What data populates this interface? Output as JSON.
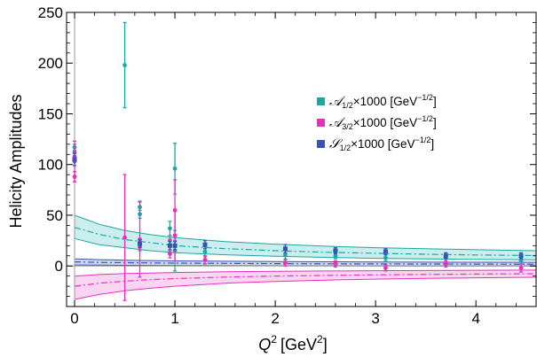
{
  "chart_data": {
    "type": "scatter",
    "xlabel": "Q",
    "xlabel_sup": "2",
    "xlabel_unit": "[GeV",
    "xlabel_unit_sup": "2",
    "xlabel_close": "]",
    "ylabel": "Helicity Amplitudes",
    "xlim": [
      -0.08,
      4.6
    ],
    "ylim": [
      -40,
      250
    ],
    "x_ticks": [
      0,
      1,
      2,
      3,
      4
    ],
    "x_tick_labels": [
      "0",
      "1",
      "2",
      "3",
      "4"
    ],
    "y_ticks": [
      0,
      50,
      100,
      150,
      200,
      250
    ],
    "y_tick_labels": [
      "0",
      "50",
      "100",
      "150",
      "200",
      "250"
    ],
    "legend_position": "top-right",
    "grid": false,
    "series": [
      {
        "key": "A12",
        "name": "𝒜1/2×1000 [GeV−1/2]",
        "legend_symbol": "𝒜",
        "legend_sub": "1/2",
        "legend_mid": "×1000 [GeV",
        "legend_sup": "−1/2",
        "legend_end": "]",
        "color": "#1aa8a4",
        "band_fill": "#9fdede",
        "points": [
          {
            "x": 0.0,
            "y": 117,
            "err": 3
          },
          {
            "x": 0.0,
            "y": 112,
            "err": 5
          },
          {
            "x": 0.5,
            "y": 198,
            "err": 42
          },
          {
            "x": 0.65,
            "y": 58,
            "err": 6
          },
          {
            "x": 0.65,
            "y": 51,
            "err": 4
          },
          {
            "x": 0.95,
            "y": 37,
            "err": 7
          },
          {
            "x": 0.95,
            "y": 25,
            "err": 5
          },
          {
            "x": 1.0,
            "y": 96,
            "err": 25
          },
          {
            "x": 1.0,
            "y": 15,
            "err": 20
          },
          {
            "x": 1.3,
            "y": 14,
            "err": 5
          },
          {
            "x": 2.1,
            "y": 11,
            "err": 4
          },
          {
            "x": 2.6,
            "y": 10,
            "err": 3
          },
          {
            "x": 3.1,
            "y": 8,
            "err": 3
          },
          {
            "x": 3.7,
            "y": 8,
            "err": 3
          },
          {
            "x": 4.45,
            "y": 5,
            "err": 3
          }
        ],
        "band": {
          "x": [
            0.0,
            0.25,
            0.5,
            0.75,
            1.0,
            1.5,
            2.0,
            2.5,
            3.0,
            3.5,
            4.0,
            4.6
          ],
          "center": [
            38,
            31,
            26,
            23,
            20,
            17,
            15,
            13.5,
            12.5,
            11.5,
            10.8,
            10.2
          ],
          "lower": [
            27,
            21,
            18,
            15,
            13,
            11,
            9.5,
            8.5,
            7.5,
            7,
            6.5,
            6
          ],
          "upper": [
            50,
            41,
            35,
            31,
            28,
            24,
            21.5,
            19.5,
            18,
            17,
            16,
            15
          ]
        }
      },
      {
        "key": "A32",
        "name": "𝒜3/2×1000 [GeV−1/2]",
        "legend_symbol": "𝒜",
        "legend_sub": "3/2",
        "legend_mid": "×1000 [GeV",
        "legend_sup": "−1/2",
        "legend_end": "]",
        "color": "#e72fbf",
        "band_fill": "#f6b2e6",
        "points": [
          {
            "x": 0.0,
            "y": 108,
            "err": 5
          },
          {
            "x": 0.0,
            "y": 103,
            "err": 20
          },
          {
            "x": 0.0,
            "y": 88,
            "err": 5
          },
          {
            "x": 0.5,
            "y": 28,
            "err": 62
          },
          {
            "x": 0.65,
            "y": 26,
            "err": 37
          },
          {
            "x": 0.65,
            "y": 19,
            "err": 4
          },
          {
            "x": 0.95,
            "y": 20,
            "err": 6
          },
          {
            "x": 0.95,
            "y": 12,
            "err": 4
          },
          {
            "x": 1.0,
            "y": 55,
            "err": 30
          },
          {
            "x": 1.0,
            "y": 30,
            "err": 25
          },
          {
            "x": 1.3,
            "y": 6,
            "err": 4
          },
          {
            "x": 2.1,
            "y": 3,
            "err": 3
          },
          {
            "x": 2.6,
            "y": 2,
            "err": 3
          },
          {
            "x": 3.1,
            "y": -2,
            "err": 3
          },
          {
            "x": 3.7,
            "y": 2,
            "err": 3
          },
          {
            "x": 4.45,
            "y": -2,
            "err": 4
          }
        ],
        "band": {
          "x": [
            0.0,
            0.25,
            0.5,
            0.75,
            1.0,
            1.5,
            2.0,
            2.5,
            3.0,
            3.5,
            4.0,
            4.6
          ],
          "center": [
            -20,
            -17,
            -15,
            -13.5,
            -12.5,
            -11,
            -10,
            -9.3,
            -8.8,
            -8.4,
            -8,
            -7.7
          ],
          "lower": [
            -33,
            -28,
            -24.5,
            -22,
            -20,
            -17,
            -15.3,
            -14,
            -13,
            -12.3,
            -11.7,
            -11.2
          ],
          "upper": [
            -10,
            -8.5,
            -7.5,
            -7,
            -6.5,
            -5.8,
            -5.3,
            -5,
            -4.7,
            -4.5,
            -4.3,
            -4.1
          ]
        }
      },
      {
        "key": "S12",
        "name": "𝒮1/2×1000 [GeV−1/2]",
        "legend_symbol": "𝒮",
        "legend_sub": "1/2",
        "legend_mid": "×1000 [GeV",
        "legend_sup": "−1/2",
        "legend_end": "]",
        "color": "#3753b8",
        "band_fill": "#aab4e4",
        "points": [
          {
            "x": 0.0,
            "y": 105,
            "err": 6
          },
          {
            "x": 0.65,
            "y": 22,
            "err": 4
          },
          {
            "x": 0.95,
            "y": 20,
            "err": 4
          },
          {
            "x": 1.0,
            "y": 20,
            "err": 4
          },
          {
            "x": 1.3,
            "y": 21,
            "err": 4
          },
          {
            "x": 2.1,
            "y": 17,
            "err": 4
          },
          {
            "x": 2.6,
            "y": 15,
            "err": 3
          },
          {
            "x": 3.1,
            "y": 14,
            "err": 3
          },
          {
            "x": 3.7,
            "y": 10,
            "err": 3
          },
          {
            "x": 4.45,
            "y": 10,
            "err": 3
          }
        ],
        "band": {
          "x": [
            0.0,
            0.25,
            0.5,
            0.75,
            1.0,
            1.5,
            2.0,
            2.5,
            3.0,
            3.5,
            4.0,
            4.6
          ],
          "center": [
            4,
            3.5,
            3.2,
            3,
            2.8,
            2.5,
            2.3,
            2.1,
            2,
            1.9,
            1.8,
            1.7
          ],
          "lower": [
            1,
            0.8,
            0.6,
            0.5,
            0.4,
            0.3,
            0.2,
            0.1,
            0,
            0,
            0,
            0
          ],
          "upper": [
            7,
            6.2,
            5.7,
            5.3,
            5,
            4.6,
            4.3,
            4.1,
            3.9,
            3.8,
            3.7,
            3.6
          ]
        }
      }
    ]
  }
}
